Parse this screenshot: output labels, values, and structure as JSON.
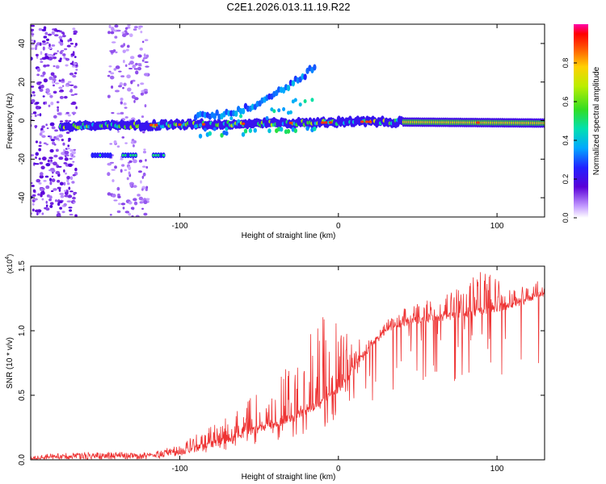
{
  "title": "C2E1.2026.013.11.19.R22",
  "chart_data": [
    {
      "type": "heatmap",
      "xlabel": "Height of straight line (km)",
      "ylabel": "Frequency (Hz)",
      "xlim": [
        -194,
        130
      ],
      "ylim": [
        -50,
        50
      ],
      "xticks": [
        -100,
        0,
        100
      ],
      "yticks": [
        -40,
        -20,
        0,
        20,
        40
      ],
      "colorbar": {
        "label": "Normalized spectral amplitude",
        "range": [
          0,
          1
        ],
        "ticks": [
          "0.0",
          "0.2",
          "0.4",
          "0.6",
          "0.8"
        ]
      },
      "features": [
        {
          "name": "main band",
          "x": [
            -175,
            130
          ],
          "freq": [
            -4,
            0
          ],
          "amplitude": 0.6
        },
        {
          "name": "lower branch",
          "x": [
            -155,
            -110
          ],
          "freq": -18,
          "amplitude": 0.4
        },
        {
          "name": "diverging branches",
          "x": [
            -90,
            -15
          ],
          "freq": [
            -10,
            30
          ],
          "amplitude": 0.3
        },
        {
          "name": "noise columns",
          "x": [
            -194,
            -165
          ],
          "freq": [
            -50,
            50
          ],
          "amplitude": 0.1
        },
        {
          "name": "noise columns",
          "x": [
            -145,
            -120
          ],
          "freq": [
            -50,
            50
          ],
          "amplitude": 0.05
        }
      ]
    },
    {
      "type": "line",
      "xlabel": "Height of straight line (km)",
      "ylabel": "SNR (10 * v/v)",
      "multiplier": "(x10",
      "multiplier_exp": "4",
      "multiplier_close": ")",
      "xlim": [
        -194,
        130
      ],
      "ylim": [
        0,
        1.5
      ],
      "xticks": [
        -100,
        0,
        100
      ],
      "yticks": [
        "0.0",
        "0.5",
        "1.0",
        "1.5"
      ],
      "color": "#ee3333",
      "envelope": [
        {
          "x": -194,
          "base": 0.01,
          "spike": 0.01
        },
        {
          "x": -160,
          "base": 0.03,
          "spike": 0.06
        },
        {
          "x": -120,
          "base": 0.03,
          "spike": 0.05
        },
        {
          "x": -100,
          "base": 0.06,
          "spike": 0.12
        },
        {
          "x": -80,
          "base": 0.12,
          "spike": 0.28
        },
        {
          "x": -60,
          "base": 0.2,
          "spike": 0.45
        },
        {
          "x": -40,
          "base": 0.28,
          "spike": 0.6
        },
        {
          "x": -25,
          "base": 0.35,
          "spike": 0.85
        },
        {
          "x": -10,
          "base": 0.45,
          "spike": 1.15
        },
        {
          "x": 0,
          "base": 0.55,
          "spike": 1.05
        },
        {
          "x": 10,
          "base": 0.72,
          "spike": 0.95
        },
        {
          "x": 20,
          "base": 0.88,
          "spike": 0.95
        },
        {
          "x": 35,
          "base": 1.05,
          "spike": 1.15
        },
        {
          "x": 60,
          "base": 1.1,
          "spike": 1.25
        },
        {
          "x": 80,
          "base": 1.12,
          "spike": 1.35
        },
        {
          "x": 90,
          "base": 1.15,
          "spike": 1.5
        },
        {
          "x": 110,
          "base": 1.2,
          "spike": 1.32
        },
        {
          "x": 130,
          "base": 1.3,
          "spike": 1.42
        }
      ]
    }
  ]
}
